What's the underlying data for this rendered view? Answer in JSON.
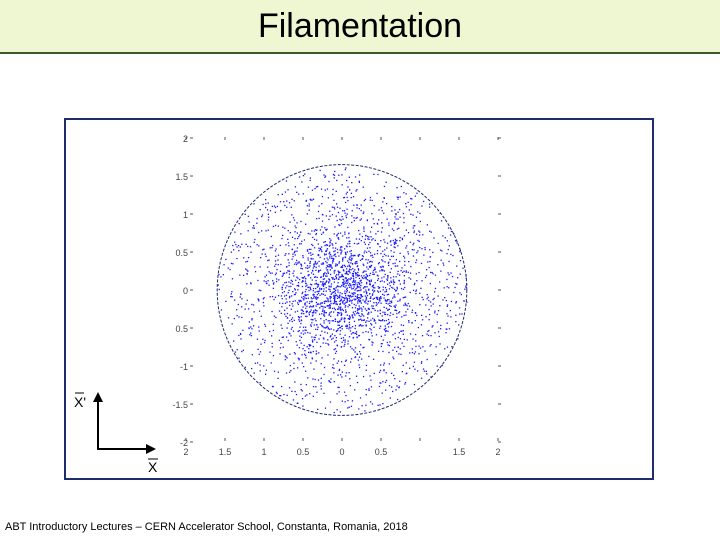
{
  "slide": {
    "title": "Filamentation",
    "footer": "ABT Introductory Lectures – CERN Accelerator School, Constanta, Romania, 2018"
  },
  "chart_data": {
    "type": "scatter",
    "title": "",
    "xlabel": "",
    "ylabel": "",
    "axis_labels": {
      "horizontal": "X",
      "vertical": "X'"
    },
    "x_ticks": [
      -2,
      -1.5,
      -1,
      -0.5,
      0,
      0.5,
      1,
      1.5,
      2
    ],
    "x_tick_labels": [
      "2",
      "1.5",
      "1",
      "0.5",
      "0",
      "0.5",
      "",
      "1.5",
      "2"
    ],
    "y_ticks": [
      2,
      1.5,
      1,
      0.5,
      0,
      -0.5,
      -1,
      -1.5,
      -2
    ],
    "y_tick_labels": [
      "2",
      "1.5",
      "1",
      "0.5",
      "0",
      "0.5",
      "-1",
      "-1.5",
      "-2"
    ],
    "xlim": [
      -2.1,
      2.1
    ],
    "ylim": [
      -2.1,
      2.1
    ],
    "grid": false,
    "ellipse": {
      "cx": 0,
      "cy": 0,
      "rx": 1.6,
      "ry": 1.65
    },
    "distribution": {
      "center": [
        0,
        0
      ],
      "core_sigma": 0.45,
      "halo_radius": 1.6
    },
    "point_color": "#1a1aff",
    "ellipse_color": "#1f2d6b"
  }
}
